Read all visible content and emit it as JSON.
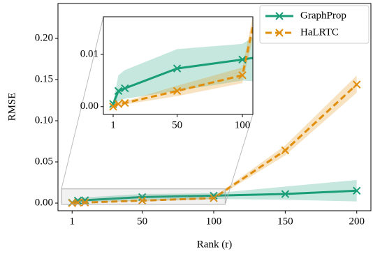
{
  "chart_data": {
    "type": "line",
    "x_label": "Rank (r)",
    "y_label": "RMSE",
    "x": [
      1,
      5,
      10,
      50,
      100,
      150,
      200
    ],
    "series": [
      {
        "name": "GraphProp",
        "color": "#1a9e77",
        "dashed": false,
        "values": [
          0.0005,
          0.003,
          0.0035,
          0.0073,
          0.009,
          0.011,
          0.015
        ],
        "lower": [
          0,
          0.001,
          0.0015,
          0.003,
          0.005,
          0.004,
          0.002
        ],
        "upper": [
          0.001,
          0.006,
          0.007,
          0.011,
          0.012,
          0.02,
          0.028
        ]
      },
      {
        "name": "HaLRTC",
        "color": "#e08e0b",
        "dashed": true,
        "values": [
          0,
          0.0005,
          0.0007,
          0.003,
          0.006,
          0.064,
          0.144
        ],
        "lower": [
          0,
          0.0002,
          0.0004,
          0.002,
          0.0045,
          0.058,
          0.134
        ],
        "upper": [
          0,
          0.0009,
          0.001,
          0.004,
          0.0075,
          0.07,
          0.155
        ]
      }
    ],
    "xlim": [
      -8.9,
      209.9
    ],
    "ylim": [
      -0.0093,
      0.2424
    ],
    "xticks": [
      1,
      50,
      100,
      150,
      200
    ],
    "yticks": [
      {
        "value": 0,
        "label": "0.00"
      },
      {
        "value": 0.05,
        "label": "0.05"
      },
      {
        "value": 0.1,
        "label": "0.10"
      },
      {
        "value": 0.15,
        "label": "0.15"
      },
      {
        "value": 0.2,
        "label": "0.20"
      }
    ],
    "legend": "upper right",
    "inset": {
      "xlim": [
        -6.5,
        108
      ],
      "ylim": [
        -0.0015,
        0.0172
      ],
      "xticks": [
        1,
        50,
        100
      ],
      "yticks": [
        {
          "value": 0,
          "label": "0.00"
        },
        {
          "value": 0.01,
          "label": "0.01"
        }
      ]
    }
  }
}
